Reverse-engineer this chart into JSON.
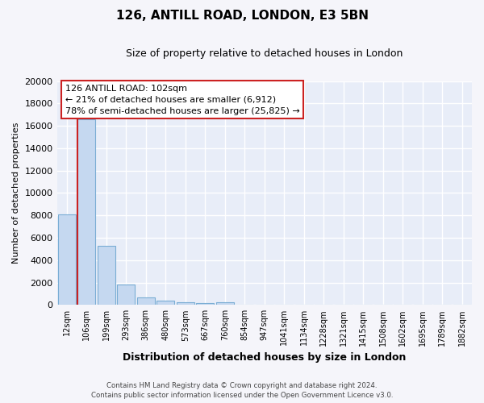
{
  "title": "126, ANTILL ROAD, LONDON, E3 5BN",
  "subtitle": "Size of property relative to detached houses in London",
  "xlabel": "Distribution of detached houses by size in London",
  "ylabel": "Number of detached properties",
  "categories": [
    "12sqm",
    "106sqm",
    "199sqm",
    "293sqm",
    "386sqm",
    "480sqm",
    "573sqm",
    "667sqm",
    "760sqm",
    "854sqm",
    "947sqm",
    "1041sqm",
    "1134sqm",
    "1228sqm",
    "1321sqm",
    "1415sqm",
    "1508sqm",
    "1602sqm",
    "1695sqm",
    "1789sqm",
    "1882sqm"
  ],
  "bar_heights": [
    8100,
    16600,
    5300,
    1850,
    700,
    350,
    270,
    200,
    220,
    0,
    0,
    0,
    0,
    0,
    0,
    0,
    0,
    0,
    0,
    0,
    0
  ],
  "bar_color": "#c5d8f0",
  "bar_edge_color": "#7aadd4",
  "ylim_max": 20000,
  "yticks": [
    0,
    2000,
    4000,
    6000,
    8000,
    10000,
    12000,
    14000,
    16000,
    18000,
    20000
  ],
  "vline_color": "#cc2222",
  "annotation_line1": "126 ANTILL ROAD: 102sqm",
  "annotation_line2": "← 21% of detached houses are smaller (6,912)",
  "annotation_line3": "78% of semi-detached houses are larger (25,825) →",
  "annotation_box_color": "#cc2222",
  "plot_bg_color": "#e8edf8",
  "fig_bg_color": "#f5f5fa",
  "grid_color": "#ffffff",
  "footer_line1": "Contains HM Land Registry data © Crown copyright and database right 2024.",
  "footer_line2": "Contains public sector information licensed under the Open Government Licence v3.0.",
  "title_fontsize": 11,
  "subtitle_fontsize": 9,
  "ylabel_fontsize": 8,
  "xlabel_fontsize": 9,
  "tick_fontsize": 7
}
